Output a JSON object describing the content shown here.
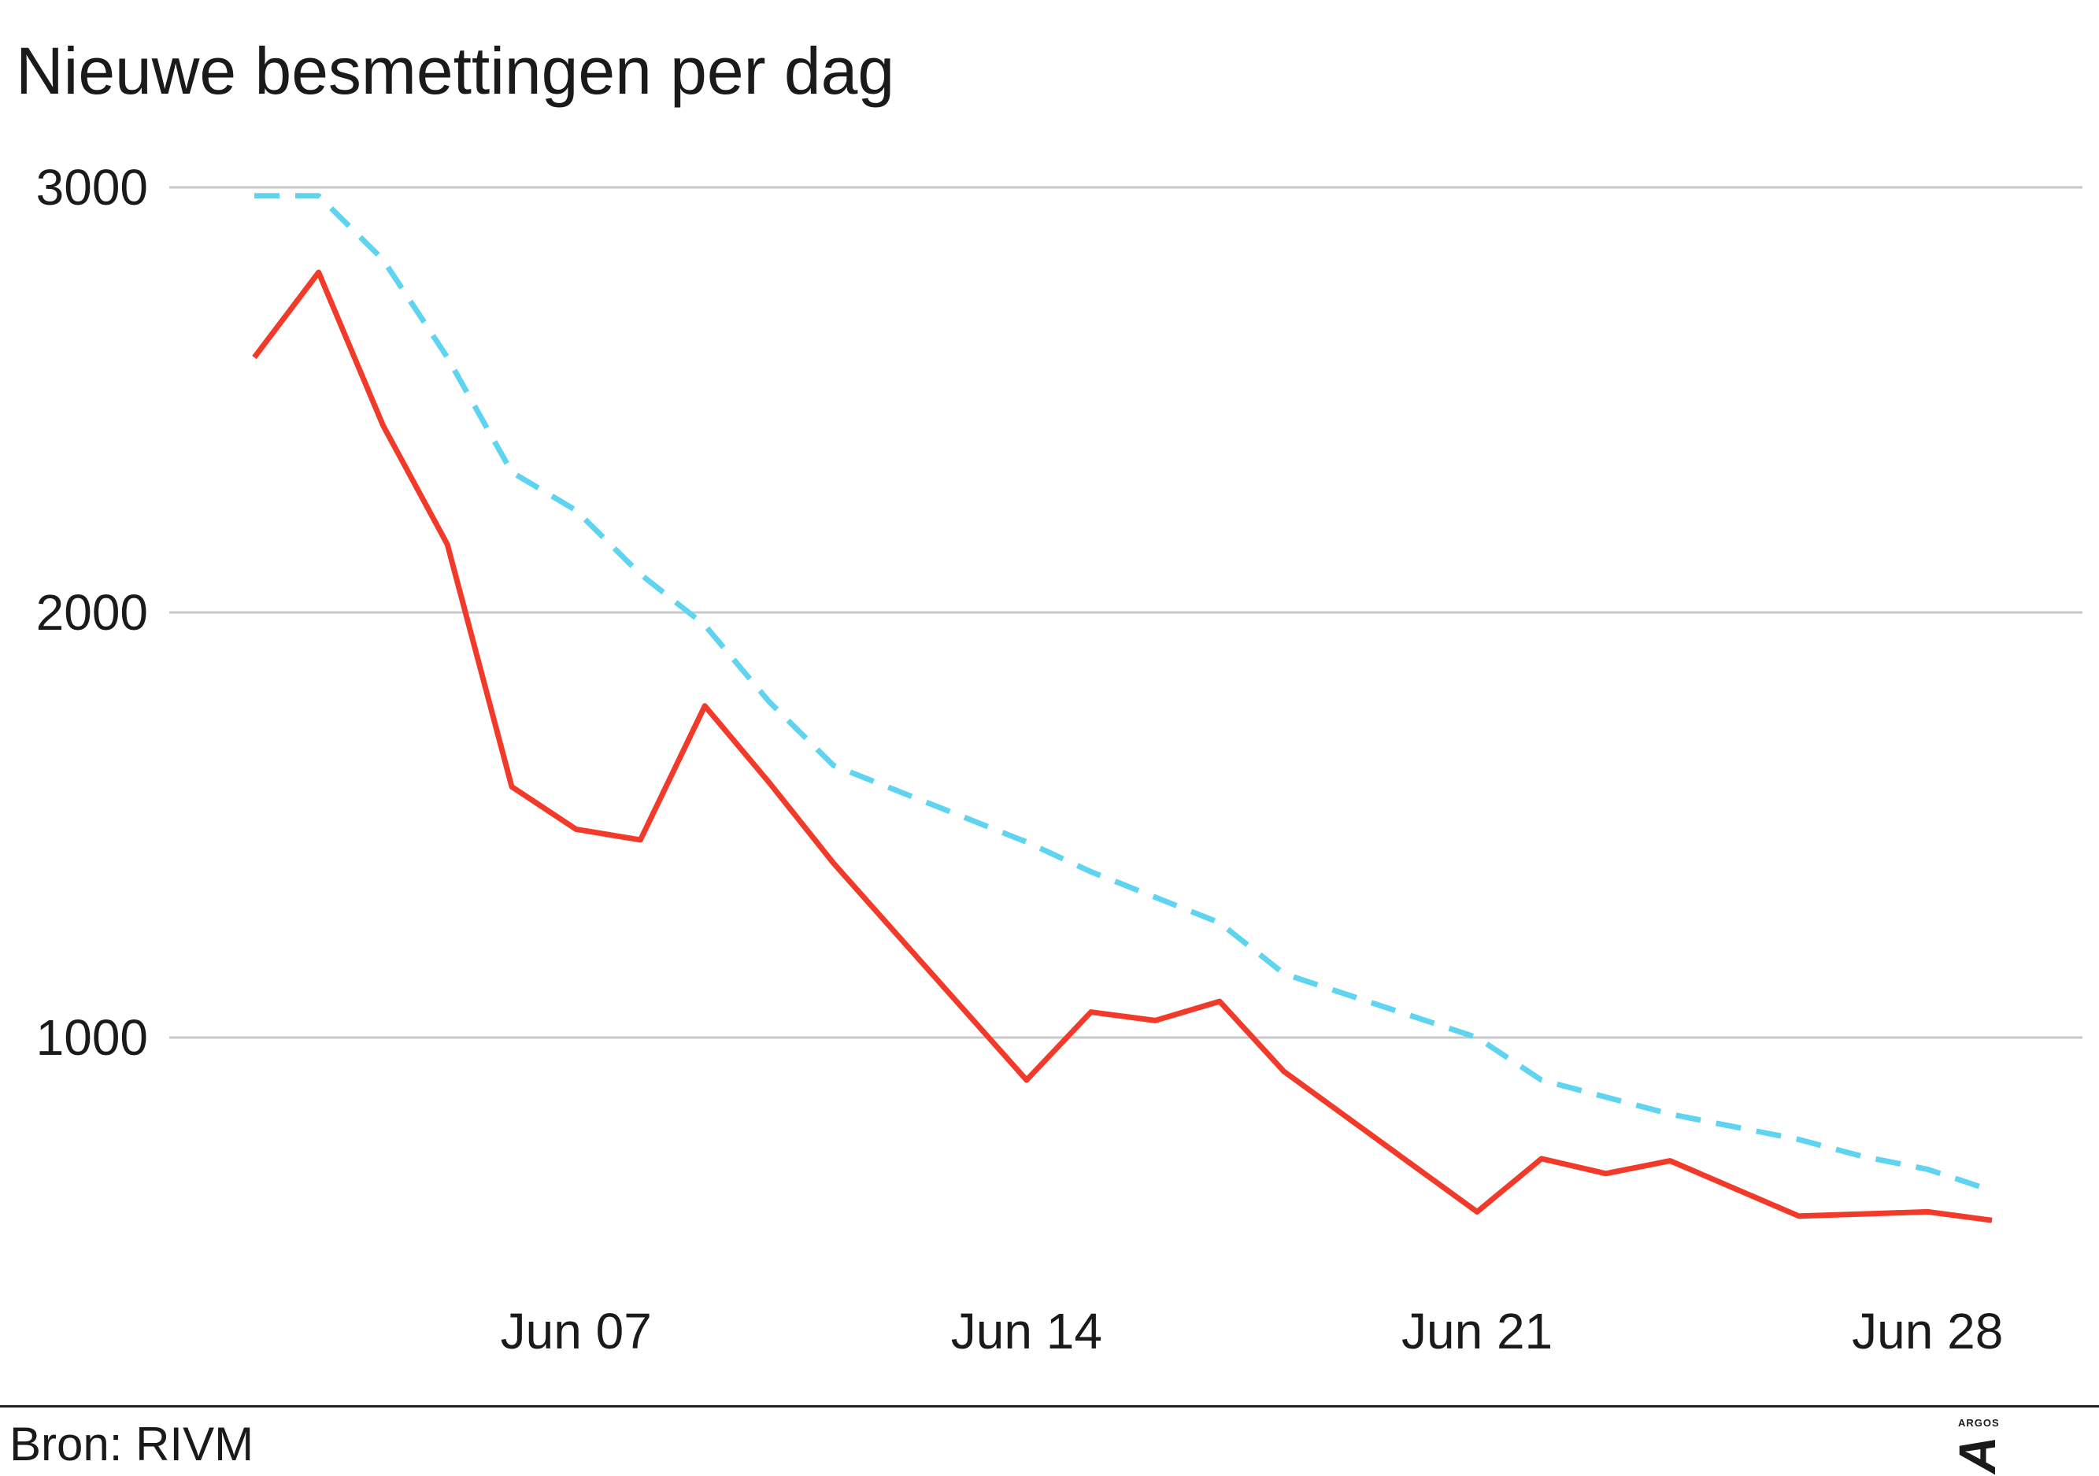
{
  "chart_data": {
    "type": "line",
    "title": "Nieuwe besmettingen per dag",
    "xlabel": "",
    "ylabel": "",
    "x": [
      "Jun 02",
      "Jun 03",
      "Jun 04",
      "Jun 05",
      "Jun 06",
      "Jun 07",
      "Jun 08",
      "Jun 09",
      "Jun 10",
      "Jun 11",
      "Jun 12",
      "Jun 13",
      "Jun 14",
      "Jun 15",
      "Jun 16",
      "Jun 17",
      "Jun 18",
      "Jun 19",
      "Jun 20",
      "Jun 21",
      "Jun 22",
      "Jun 23",
      "Jun 24",
      "Jun 25",
      "Jun 26",
      "Jun 27",
      "Jun 28",
      "Jun 29"
    ],
    "x_ticks": [
      "Jun 07",
      "Jun 14",
      "Jun 21",
      "Jun 28"
    ],
    "y_ticks": [
      1000,
      2000,
      3000
    ],
    "ylim": [
      550,
      3050
    ],
    "grid": "horizontal",
    "series": [
      {
        "color": "#f23a2a",
        "style": "solid",
        "values": [
          2600,
          2800,
          2440,
          2160,
          1590,
          1490,
          1465,
          1780,
          1600,
          1410,
          1240,
          1070,
          900,
          1060,
          1040,
          1085,
          920,
          810,
          700,
          590,
          715,
          680,
          710,
          645,
          580,
          585,
          590,
          570
        ]
      },
      {
        "color": "#5fd4f0",
        "style": "dashed",
        "values": [
          2980,
          2980,
          2830,
          2600,
          2330,
          2240,
          2090,
          1970,
          1790,
          1640,
          1580,
          1520,
          1460,
          1390,
          1330,
          1270,
          1150,
          1100,
          1050,
          1000,
          900,
          860,
          820,
          790,
          760,
          720,
          690,
          640
        ]
      }
    ]
  },
  "footer": {
    "source": "Bron: RIVM",
    "logo_text": "ARGOS",
    "logo_mark": "A"
  }
}
